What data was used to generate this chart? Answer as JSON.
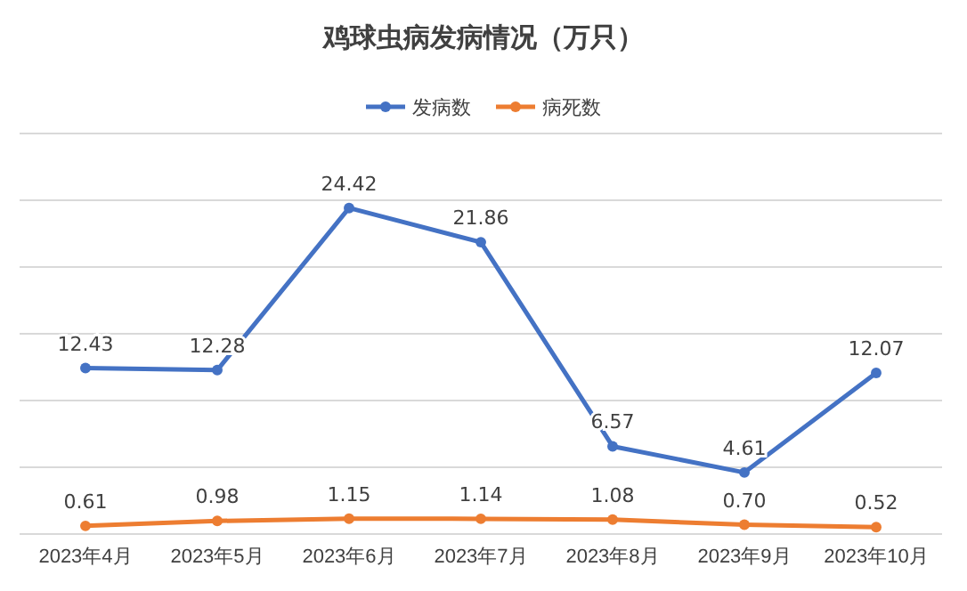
{
  "chart_data": {
    "type": "line",
    "title": "鸡球虫病发病情况（万只）",
    "categories": [
      "2023年4月",
      "2023年5月",
      "2023年6月",
      "2023年7月",
      "2023年8月",
      "2023年9月",
      "2023年10月"
    ],
    "series": [
      {
        "name": "发病数",
        "color": "#4472c4",
        "values": [
          12.43,
          12.28,
          24.42,
          21.86,
          6.57,
          4.61,
          12.07
        ],
        "value_labels": [
          "12.43",
          "12.28",
          "24.42",
          "21.86",
          "6.57",
          "4.61",
          "12.07"
        ]
      },
      {
        "name": "病死数",
        "color": "#ed7d31",
        "values": [
          0.61,
          0.98,
          1.15,
          1.14,
          1.08,
          0.7,
          0.52
        ],
        "value_labels": [
          "0.61",
          "0.98",
          "1.15",
          "1.14",
          "1.08",
          "0.70",
          "0.52"
        ]
      }
    ],
    "ylim": [
      0,
      30
    ],
    "yticks": [
      {
        "value": 0,
        "label": null
      },
      {
        "value": 5,
        "label": null
      },
      {
        "value": 10,
        "label": null
      },
      {
        "value": 15,
        "label": null
      },
      {
        "value": 20,
        "label": null
      },
      {
        "value": 25,
        "label": null
      },
      {
        "value": 30,
        "label": null
      }
    ],
    "tick_labels": "x",
    "grid": "y",
    "legend": "top",
    "marker": "circle",
    "line_style": "solid"
  }
}
